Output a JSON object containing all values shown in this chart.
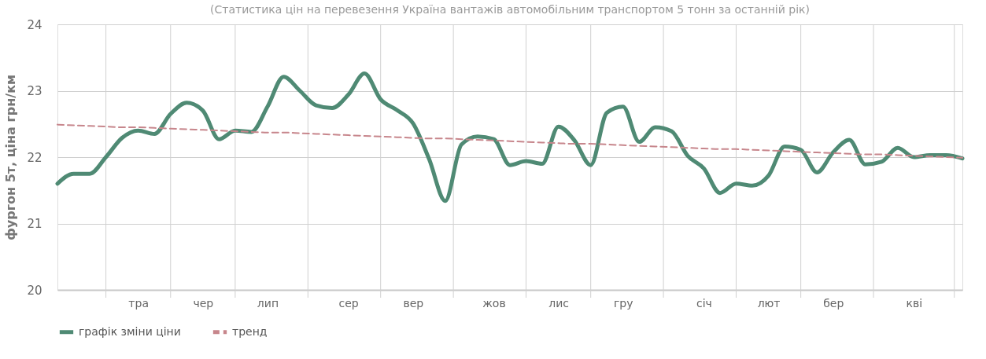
{
  "chart_data": {
    "type": "line",
    "title": "(Статистика цін на перевезення Україна вантажів автомобільним транспортом 5 тонн за останній рік)",
    "ylabel": "фургон 5т, ціна грн/км",
    "categories": [
      null,
      null,
      null,
      null,
      null,
      "тра",
      null,
      null,
      null,
      "чер",
      null,
      null,
      null,
      "лип",
      null,
      null,
      null,
      null,
      "сер",
      null,
      null,
      null,
      "вер",
      null,
      null,
      null,
      null,
      "жов",
      null,
      null,
      null,
      "лис",
      null,
      null,
      null,
      "гру",
      null,
      null,
      null,
      null,
      "січ",
      null,
      null,
      null,
      "лют",
      null,
      null,
      null,
      "бер",
      null,
      null,
      null,
      null,
      "кві",
      null,
      null,
      null
    ],
    "ylim": [
      20,
      24
    ],
    "yticks": [
      20,
      21,
      22,
      23,
      24
    ],
    "grid": true,
    "legend": "bottom",
    "series": [
      {
        "name": "графік зміни ціни",
        "type": "line",
        "line_style": "solid",
        "color": "#4f8a74",
        "values": [
          21.6,
          21.75,
          21.75,
          22.0,
          22.29,
          22.4,
          22.35,
          22.65,
          22.82,
          22.7,
          22.27,
          22.4,
          22.38,
          22.76,
          23.21,
          23.0,
          22.78,
          22.74,
          22.94,
          23.26,
          22.87,
          22.71,
          22.51,
          21.97,
          21.34,
          22.19,
          22.31,
          22.27,
          21.88,
          21.94,
          21.9,
          22.46,
          22.25,
          21.88,
          22.67,
          22.76,
          22.23,
          22.45,
          22.39,
          22.02,
          21.83,
          21.46,
          21.6,
          21.57,
          21.72,
          22.16,
          22.11,
          21.77,
          22.07,
          22.26,
          21.89,
          21.93,
          22.14,
          22.0,
          22.03,
          22.03,
          21.98
        ]
      },
      {
        "name": "тренд",
        "type": "line",
        "line_style": "dashed",
        "color": "#c7868c",
        "values": [
          22.49,
          22.48,
          22.47,
          22.46,
          22.45,
          22.45,
          22.44,
          22.43,
          22.42,
          22.41,
          22.4,
          22.39,
          22.38,
          22.37,
          22.37,
          22.36,
          22.35,
          22.34,
          22.33,
          22.32,
          22.31,
          22.3,
          22.29,
          22.28,
          22.28,
          22.27,
          22.26,
          22.25,
          22.24,
          22.23,
          22.22,
          22.21,
          22.2,
          22.2,
          22.19,
          22.18,
          22.17,
          22.16,
          22.15,
          22.14,
          22.13,
          22.12,
          22.12,
          22.11,
          22.1,
          22.09,
          22.08,
          22.07,
          22.06,
          22.05,
          22.04,
          22.04,
          22.03,
          22.02,
          22.01,
          22.0,
          21.99
        ]
      }
    ]
  }
}
